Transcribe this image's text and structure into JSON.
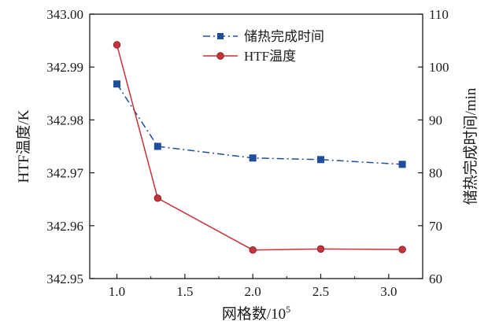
{
  "chart_data": {
    "type": "line",
    "xlabel": "网格数/10",
    "xlabel_sup": "5",
    "ylabel_left": "HTF温度/K",
    "ylabel_right": "储热完成时间/min",
    "xlim": [
      0.8,
      3.25
    ],
    "ylim_left": [
      342.95,
      343.0
    ],
    "ylim_right": [
      60,
      110
    ],
    "x_ticks": [
      "1.0",
      "1.5",
      "2.0",
      "2.5",
      "3.0"
    ],
    "x_tick_values": [
      1.0,
      1.5,
      2.0,
      2.5,
      3.0
    ],
    "y_left_ticks": [
      "342.95",
      "342.96",
      "342.97",
      "342.98",
      "342.99",
      "343.00"
    ],
    "y_left_tick_values": [
      342.95,
      342.96,
      342.97,
      342.98,
      342.99,
      343.0
    ],
    "y_right_ticks": [
      "60",
      "70",
      "80",
      "90",
      "100",
      "110"
    ],
    "y_right_tick_values": [
      60,
      70,
      80,
      90,
      100,
      110
    ],
    "legend_position": "top-center",
    "series": [
      {
        "name": "储热完成时间",
        "axis": "right",
        "color": "#1f4e9c",
        "marker": "square",
        "line_style": "dash-dot",
        "x": [
          1.0,
          1.3,
          2.0,
          2.5,
          3.1
        ],
        "values": [
          96.8,
          85.0,
          82.8,
          82.5,
          81.6
        ]
      },
      {
        "name": "HTF温度",
        "axis": "left",
        "color": "#c8323a",
        "marker": "circle",
        "line_style": "solid",
        "x": [
          1.0,
          1.3,
          2.0,
          2.5,
          3.1
        ],
        "values": [
          342.9942,
          342.9652,
          342.9554,
          342.9556,
          342.9555
        ]
      }
    ]
  }
}
